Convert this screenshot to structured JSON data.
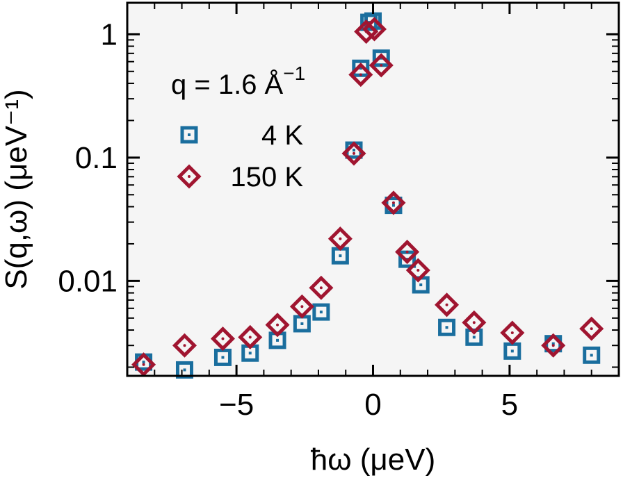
{
  "chart_data": {
    "type": "scatter",
    "xlabel": "ħω  (μeV)",
    "ylabel": "S(q,ω)  (μeV⁻¹)",
    "xlim": [
      -9.0,
      9.0
    ],
    "ylim": [
      0.0017,
      1.8
    ],
    "yscale": "log",
    "grid": false,
    "legend_position": "top-left",
    "xticks": [
      -5,
      0,
      5
    ],
    "xtick_labels": [
      "−5",
      "0",
      "5"
    ],
    "yticks": [
      0.01,
      0.1,
      1
    ],
    "ytick_labels": [
      "0.01",
      "0.1",
      "1"
    ],
    "annotation": {
      "main": "q = 1.6 Å",
      "sup": "−1"
    },
    "series": [
      {
        "name": "4 K",
        "marker": "square",
        "color": "#1a6e9e",
        "x": [
          -8.4,
          -6.9,
          -5.5,
          -4.5,
          -3.5,
          -2.6,
          -1.9,
          -1.2,
          -0.7,
          -0.45,
          -0.15,
          0.0,
          0.3,
          0.75,
          1.25,
          1.75,
          2.7,
          3.7,
          5.1,
          6.6,
          8.0
        ],
        "y": [
          0.0022,
          0.0019,
          0.0024,
          0.0026,
          0.0033,
          0.0045,
          0.0056,
          0.016,
          0.115,
          0.53,
          1.25,
          1.28,
          0.64,
          0.041,
          0.015,
          0.0093,
          0.0042,
          0.0035,
          0.0027,
          0.0031,
          0.0025
        ]
      },
      {
        "name": "150 K",
        "marker": "diamond",
        "color": "#a01530",
        "x": [
          -8.4,
          -6.9,
          -5.5,
          -4.5,
          -3.5,
          -2.6,
          -1.9,
          -1.2,
          -0.7,
          -0.45,
          -0.25,
          0.05,
          0.3,
          0.75,
          1.25,
          1.65,
          2.7,
          3.7,
          5.1,
          6.6,
          8.0
        ],
        "y": [
          0.0021,
          0.003,
          0.0034,
          0.0035,
          0.0044,
          0.0062,
          0.0088,
          0.022,
          0.108,
          0.47,
          1.05,
          1.1,
          0.56,
          0.043,
          0.0172,
          0.0122,
          0.0064,
          0.0046,
          0.0038,
          0.003,
          0.0041
        ]
      }
    ]
  }
}
